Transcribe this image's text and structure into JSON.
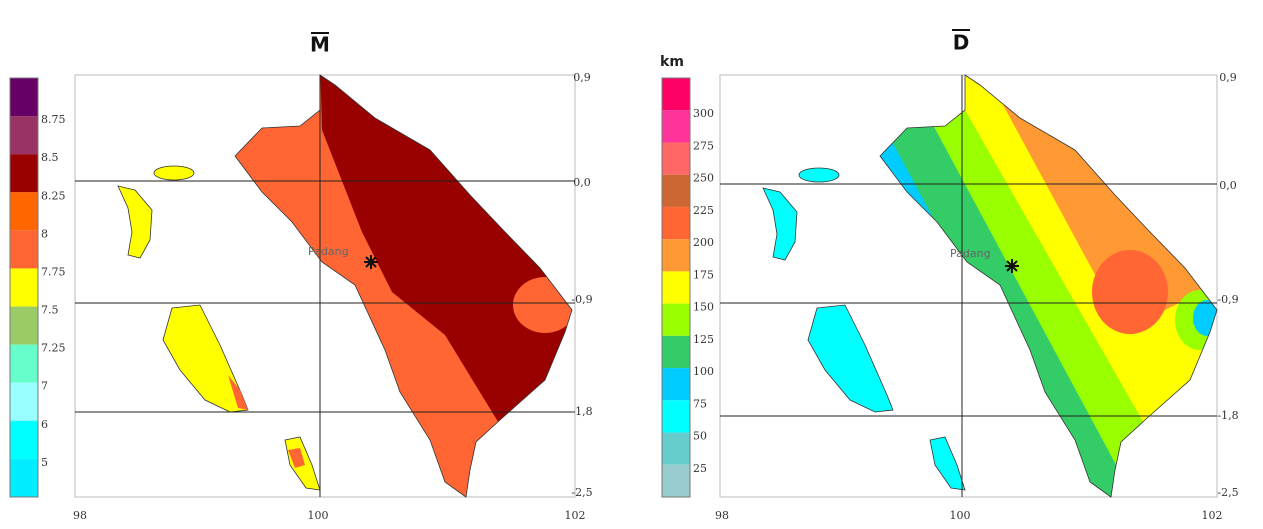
{
  "panels": [
    {
      "title": "M",
      "legend": {
        "top_color": "#660066",
        "items": [
          {
            "label": "8.75",
            "color": "#993366"
          },
          {
            "label": "8.5",
            "color": "#990000"
          },
          {
            "label": "8.25",
            "color": "#ff6600"
          },
          {
            "label": "8",
            "color": "#ff6633"
          },
          {
            "label": "7.75",
            "color": "#ffff00"
          },
          {
            "label": "7.5",
            "color": "#99cc66"
          },
          {
            "label": "7.25",
            "color": "#66ffcc"
          },
          {
            "label": "7",
            "color": "#99ffff"
          },
          {
            "label": "6",
            "color": "#00ffff"
          },
          {
            "label": "5",
            "color": "#00eeff"
          }
        ]
      },
      "xticks": [
        "98",
        "100",
        "102"
      ],
      "yticks": [
        "0,9",
        "0,0",
        "-0,9",
        "-1,8",
        "-2,5"
      ],
      "city": "Padang"
    },
    {
      "title": "D",
      "legend": {
        "unit": "km",
        "top_color": "#ff0066",
        "items": [
          {
            "label": "300",
            "color": "#ff3399"
          },
          {
            "label": "275",
            "color": "#ff6666"
          },
          {
            "label": "250",
            "color": "#cc6633"
          },
          {
            "label": "225",
            "color": "#ff6633"
          },
          {
            "label": "200",
            "color": "#ff9933"
          },
          {
            "label": "175",
            "color": "#ffff00"
          },
          {
            "label": "150",
            "color": "#99ff00"
          },
          {
            "label": "125",
            "color": "#33cc66"
          },
          {
            "label": "100",
            "color": "#00ccff"
          },
          {
            "label": "75",
            "color": "#00ffff"
          },
          {
            "label": "50",
            "color": "#66cccc"
          },
          {
            "label": "25",
            "color": "#99cccc"
          }
        ]
      },
      "xticks": [
        "98",
        "100",
        "102"
      ],
      "yticks": [
        "0,9",
        "0,0",
        "-0,9",
        "-1,8",
        "-2,5"
      ],
      "city": "Padang"
    }
  ]
}
